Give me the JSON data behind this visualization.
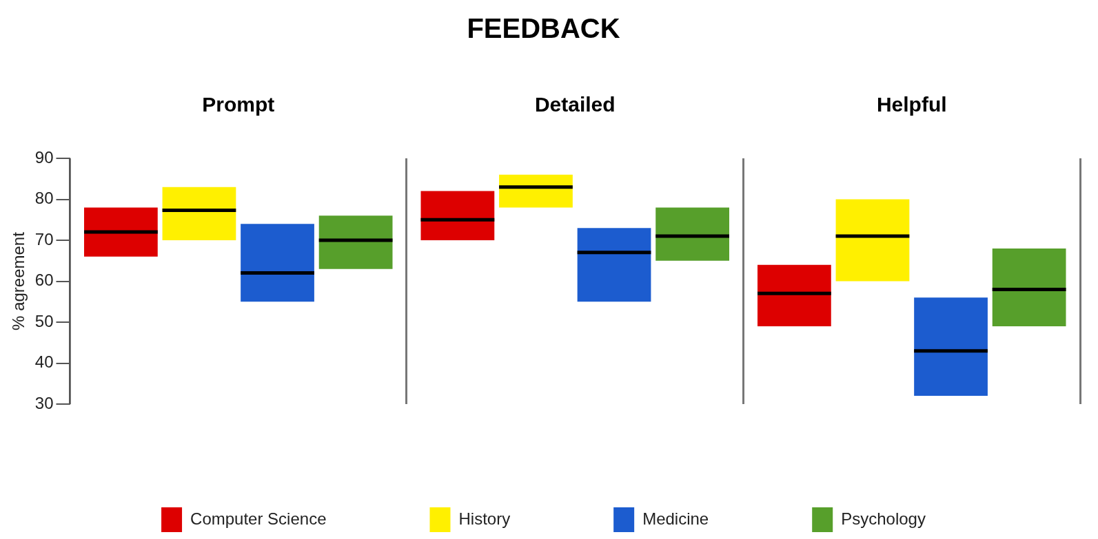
{
  "chart_data": {
    "type": "box",
    "title": "FEEDBACK",
    "ylabel": "% agreement",
    "categories": [
      "Prompt",
      "Detailed",
      "Helpful"
    ],
    "ylim": [
      30,
      90
    ],
    "yticks": [
      30,
      40,
      50,
      60,
      70,
      80,
      90
    ],
    "grid": "x",
    "legend": "bottom",
    "series": [
      {
        "name": "Computer Science",
        "color": "#dd0000",
        "boxes": [
          {
            "low": 66,
            "q1": 66,
            "median": 72,
            "q3": 78,
            "high": 78
          },
          {
            "low": 70,
            "q1": 70,
            "median": 75,
            "q3": 82,
            "high": 82
          },
          {
            "low": 49,
            "q1": 49,
            "median": 57,
            "q3": 64,
            "high": 64
          }
        ]
      },
      {
        "name": "History",
        "color": "#fff000",
        "boxes": [
          {
            "low": 70,
            "q1": 70,
            "median": 77.3,
            "q3": 83,
            "high": 83
          },
          {
            "low": 78,
            "q1": 78,
            "median": 83,
            "q3": 86,
            "high": 86
          },
          {
            "low": 60,
            "q1": 60,
            "median": 71,
            "q3": 80,
            "high": 80
          }
        ]
      },
      {
        "name": "Medicine",
        "color": "#1c5ccf",
        "boxes": [
          {
            "low": 55,
            "q1": 55,
            "median": 62,
            "q3": 74,
            "high": 74
          },
          {
            "low": 55,
            "q1": 55,
            "median": 67,
            "q3": 73,
            "high": 73
          },
          {
            "low": 32,
            "q1": 32,
            "median": 43,
            "q3": 56,
            "high": 56
          }
        ]
      },
      {
        "name": "Psychology",
        "color": "#579f2b",
        "boxes": [
          {
            "low": 63,
            "q1": 63,
            "median": 70,
            "q3": 76,
            "high": 76
          },
          {
            "low": 65,
            "q1": 65,
            "median": 71,
            "q3": 78,
            "high": 78
          },
          {
            "low": 49,
            "q1": 49,
            "median": 58,
            "q3": 68,
            "high": 68
          }
        ]
      }
    ]
  }
}
